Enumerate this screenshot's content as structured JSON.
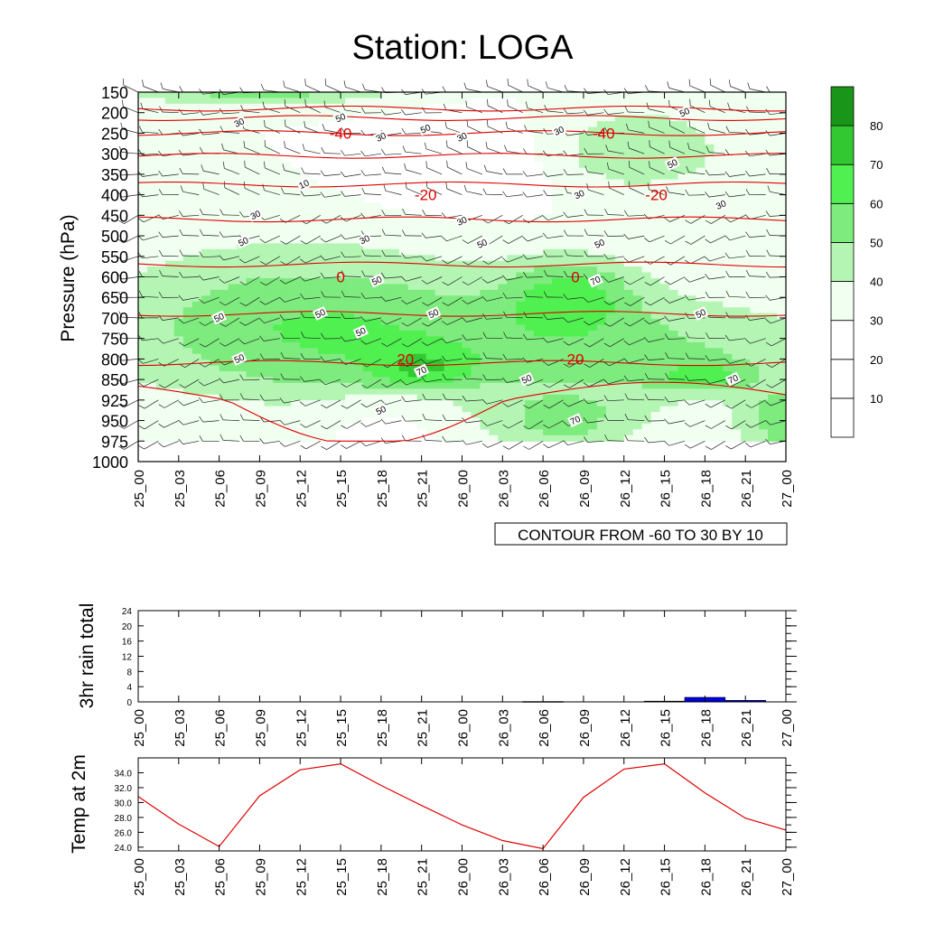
{
  "title": "Station: LOGA",
  "colors": {
    "shade_levels": [
      "#ffffff",
      "#ffffff",
      "#ffffff",
      "#f0fff0",
      "#b4f5b4",
      "#7deb7d",
      "#50f050",
      "#32c832",
      "#199619"
    ],
    "isotherm": "#e00000",
    "rain_bar": "#0000e0",
    "temp_line": "#e00000"
  },
  "chart_data": [
    {
      "type": "heatmap",
      "ylabel": "Pressure (hPa)",
      "x_ticks": [
        "25_00",
        "25_03",
        "25_06",
        "25_09",
        "25_12",
        "25_15",
        "25_18",
        "25_21",
        "26_00",
        "26_03",
        "26_06",
        "26_09",
        "26_12",
        "26_15",
        "26_18",
        "26_21",
        "27_00"
      ],
      "y_ticks": [
        "150",
        "200",
        "250",
        "300",
        "350",
        "400",
        "450",
        "500",
        "550",
        "600",
        "650",
        "700",
        "750",
        "800",
        "850",
        "925",
        "950",
        "975",
        "1000"
      ],
      "colorbar": {
        "ticks": [
          "10",
          "20",
          "30",
          "40",
          "50",
          "60",
          "70",
          "80"
        ],
        "levels": [
          0,
          10,
          20,
          30,
          40,
          50,
          60,
          70,
          80,
          90
        ]
      },
      "contour_note": "CONTOUR FROM -60 TO 30 BY 10",
      "isotherm_labels": [
        {
          "text": "-40",
          "x": 5,
          "y": 250
        },
        {
          "text": "-40",
          "x": 11.5,
          "y": 250
        },
        {
          "text": "-20",
          "x": 7.1,
          "y": 400
        },
        {
          "text": "-20",
          "x": 12.8,
          "y": 400
        },
        {
          "text": "0",
          "x": 5,
          "y": 600
        },
        {
          "text": "0",
          "x": 10.8,
          "y": 600
        },
        {
          "text": "20",
          "x": 6.6,
          "y": 800
        },
        {
          "text": "20",
          "x": 10.8,
          "y": 800
        }
      ],
      "contour_labels": [
        {
          "text": "30",
          "x": 2.5,
          "y": 225
        },
        {
          "text": "50",
          "x": 5,
          "y": 213
        },
        {
          "text": "50",
          "x": 7.1,
          "y": 240
        },
        {
          "text": "30",
          "x": 6,
          "y": 260
        },
        {
          "text": "30",
          "x": 8,
          "y": 260
        },
        {
          "text": "30",
          "x": 10.4,
          "y": 245
        },
        {
          "text": "50",
          "x": 13.5,
          "y": 200
        },
        {
          "text": "50",
          "x": 13.2,
          "y": 325
        },
        {
          "text": "10",
          "x": 4.1,
          "y": 375
        },
        {
          "text": "30",
          "x": 10.9,
          "y": 400
        },
        {
          "text": "30",
          "x": 14.4,
          "y": 425
        },
        {
          "text": "30",
          "x": 2.9,
          "y": 450
        },
        {
          "text": "30",
          "x": 8,
          "y": 465
        },
        {
          "text": "30",
          "x": 5.6,
          "y": 510
        },
        {
          "text": "50",
          "x": 2.6,
          "y": 515
        },
        {
          "text": "50",
          "x": 8.5,
          "y": 520
        },
        {
          "text": "50",
          "x": 11.4,
          "y": 520
        },
        {
          "text": "50",
          "x": 5.9,
          "y": 610
        },
        {
          "text": "70",
          "x": 11.3,
          "y": 610
        },
        {
          "text": "50",
          "x": 4.5,
          "y": 690
        },
        {
          "text": "50",
          "x": 7.3,
          "y": 690
        },
        {
          "text": "50",
          "x": 2,
          "y": 700
        },
        {
          "text": "50",
          "x": 13.9,
          "y": 690
        },
        {
          "text": "50",
          "x": 5.5,
          "y": 735
        },
        {
          "text": "50",
          "x": 2.5,
          "y": 800
        },
        {
          "text": "70",
          "x": 7,
          "y": 830
        },
        {
          "text": "50",
          "x": 9.6,
          "y": 850
        },
        {
          "text": "70",
          "x": 14.7,
          "y": 850
        },
        {
          "text": "50",
          "x": 6,
          "y": 938
        },
        {
          "text": "70",
          "x": 10.8,
          "y": 950
        }
      ]
    },
    {
      "type": "bar",
      "ylabel": "3hr rain total",
      "x": [
        "25_00",
        "25_03",
        "25_06",
        "25_09",
        "25_12",
        "25_15",
        "25_18",
        "25_21",
        "26_00",
        "26_03",
        "26_06",
        "26_09",
        "26_12",
        "26_15",
        "26_18",
        "26_21",
        "27_00"
      ],
      "values": [
        0,
        0,
        0,
        0,
        0,
        0,
        0,
        0,
        0,
        0,
        0.1,
        0,
        0,
        0.2,
        1.2,
        0.4,
        0
      ],
      "ylim": [
        0,
        24
      ],
      "y_ticks": [
        "0",
        "4",
        "8",
        "12",
        "16",
        "20",
        "24"
      ]
    },
    {
      "type": "line",
      "ylabel": "Temp at 2m",
      "x": [
        "25_00",
        "25_03",
        "25_06",
        "25_09",
        "25_12",
        "25_15",
        "25_18",
        "25_21",
        "26_00",
        "26_03",
        "26_06",
        "26_09",
        "26_12",
        "26_15",
        "26_18",
        "26_21",
        "27_00"
      ],
      "values": [
        30.8,
        27.1,
        24.1,
        30.9,
        34.4,
        35.2,
        32.3,
        29.6,
        27.0,
        24.9,
        23.8,
        30.7,
        34.5,
        35.2,
        31.3,
        27.9,
        26.3
      ],
      "ylim": [
        23.5,
        36.0
      ],
      "y_ticks": [
        "24.0",
        "26.0",
        "28.0",
        "30.0",
        "32.0",
        "34.0"
      ]
    }
  ]
}
